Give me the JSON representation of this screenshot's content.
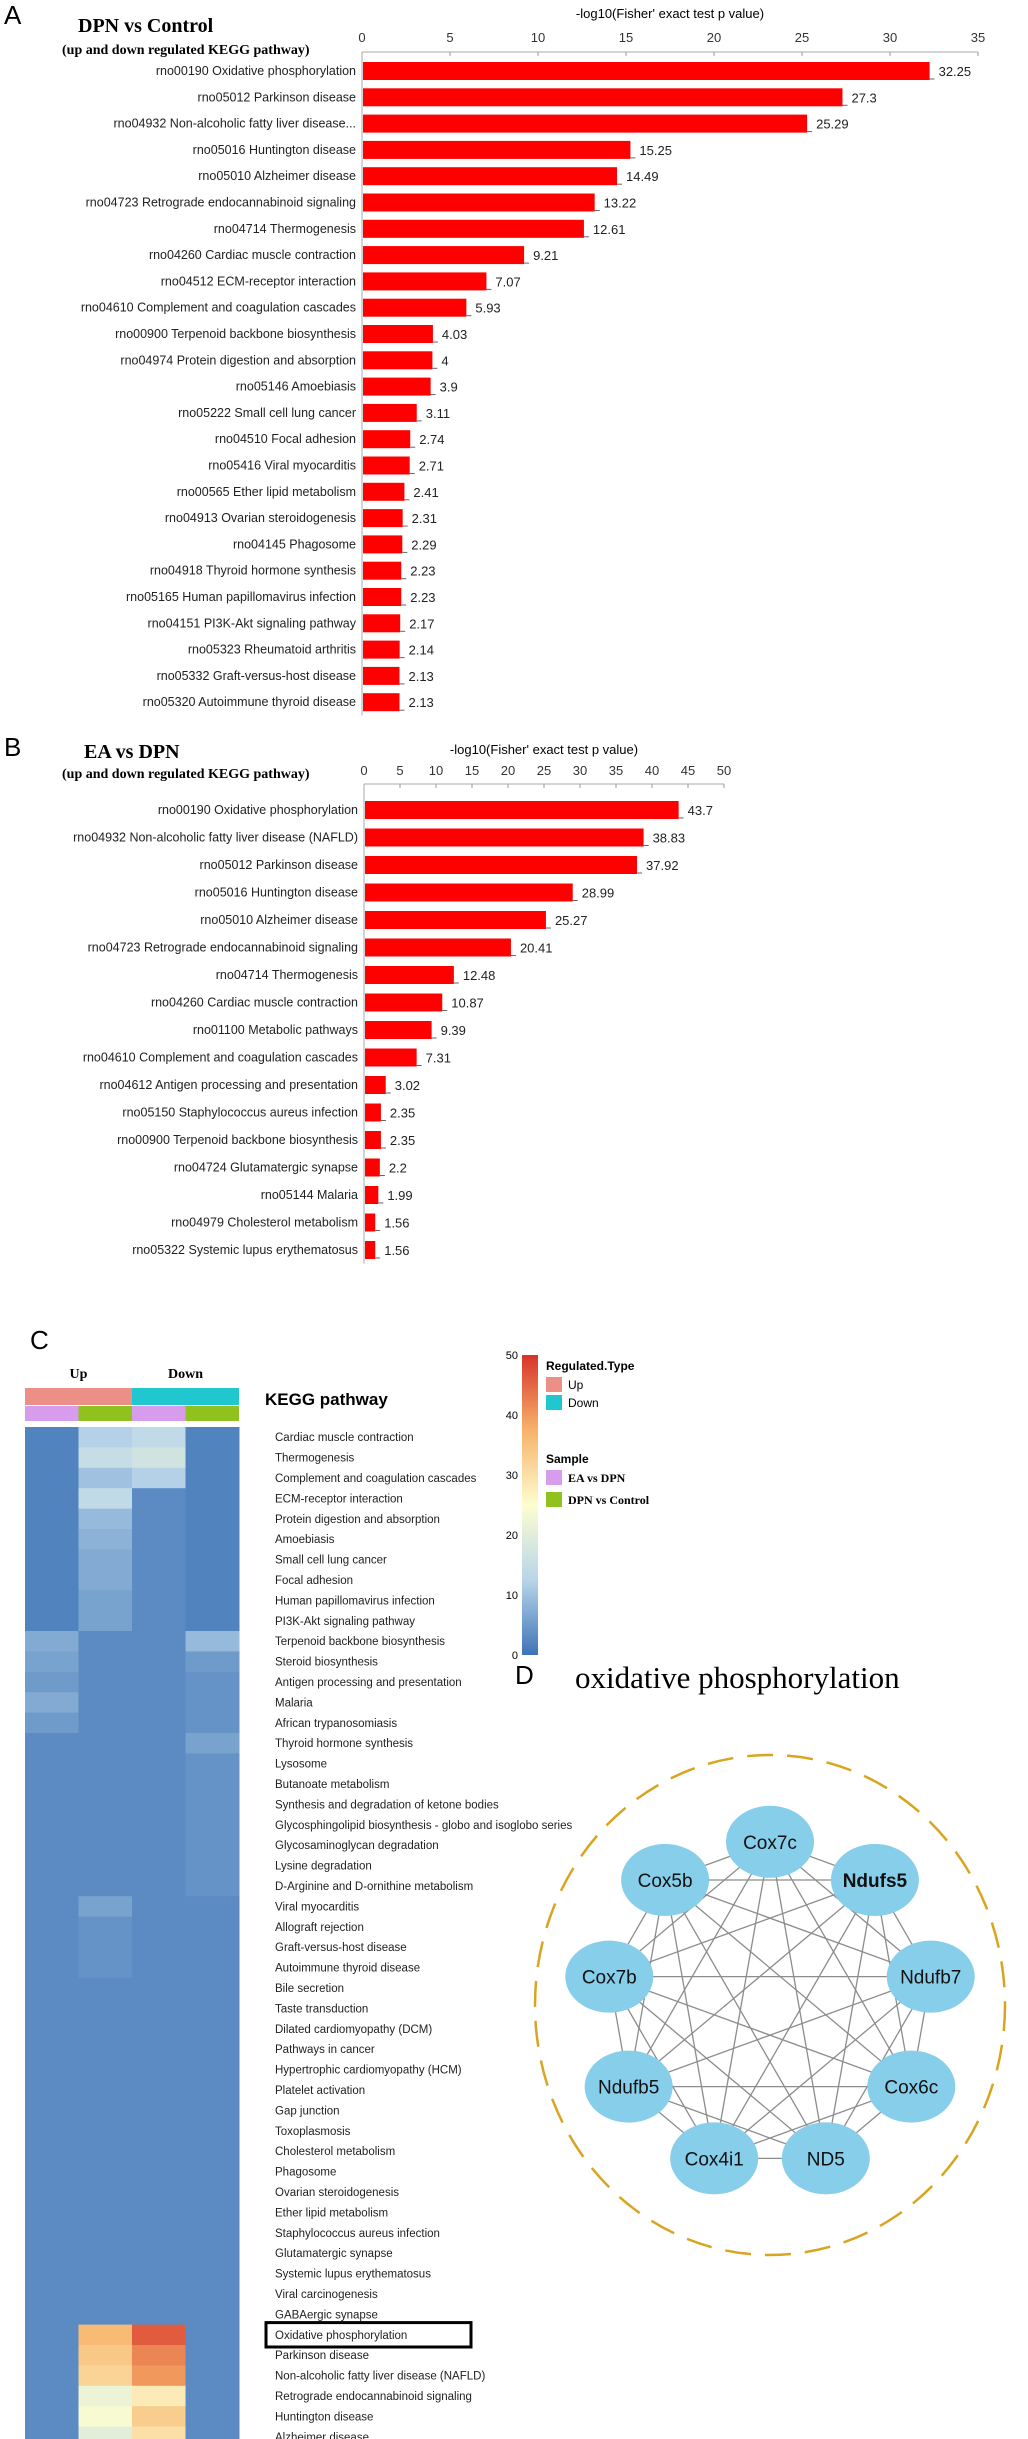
{
  "panels": {
    "A": "A",
    "B": "B",
    "C": "C",
    "D": "D"
  },
  "chart_data": [
    {
      "type": "bar",
      "orientation": "horizontal",
      "title": "DPN vs Control",
      "subtitle": "(up and down regulated KEGG pathway)",
      "xlabel": "-log10(Fisher' exact test p value)",
      "xlim": [
        0,
        35
      ],
      "xticks": [
        0,
        5,
        10,
        15,
        20,
        25,
        30,
        35
      ],
      "bar_color": "#ff0000",
      "categories": [
        "rno00190 Oxidative phosphorylation",
        "rno05012 Parkinson disease",
        "rno04932 Non-alcoholic fatty liver disease...",
        "rno05016 Huntington disease",
        "rno05010 Alzheimer disease",
        "rno04723 Retrograde endocannabinoid signaling",
        "rno04714 Thermogenesis",
        "rno04260 Cardiac muscle contraction",
        "rno04512 ECM-receptor interaction",
        "rno04610 Complement and coagulation cascades",
        "rno00900 Terpenoid backbone biosynthesis",
        "rno04974 Protein digestion and absorption",
        "rno05146 Amoebiasis",
        "rno05222 Small cell lung cancer",
        "rno04510 Focal adhesion",
        "rno05416 Viral myocarditis",
        "rno00565 Ether lipid metabolism",
        "rno04913 Ovarian steroidogenesis",
        "rno04145 Phagosome",
        "rno04918 Thyroid hormone synthesis",
        "rno05165 Human papillomavirus infection",
        "rno04151 PI3K-Akt signaling pathway",
        "rno05323 Rheumatoid arthritis",
        "rno05332 Graft-versus-host disease",
        "rno05320 Autoimmune thyroid disease"
      ],
      "values": [
        32.25,
        27.3,
        25.29,
        15.25,
        14.49,
        13.22,
        12.61,
        9.21,
        7.07,
        5.93,
        4.03,
        4,
        3.9,
        3.11,
        2.74,
        2.71,
        2.41,
        2.31,
        2.29,
        2.23,
        2.23,
        2.17,
        2.14,
        2.13,
        2.13
      ]
    },
    {
      "type": "bar",
      "orientation": "horizontal",
      "title": "EA vs DPN",
      "subtitle": "(up and down regulated KEGG pathway)",
      "xlabel": "-log10(Fisher' exact test p value)",
      "xlim": [
        0,
        50
      ],
      "xticks": [
        0,
        5,
        10,
        15,
        20,
        25,
        30,
        35,
        40,
        45,
        50
      ],
      "bar_color": "#ff0000",
      "categories": [
        "rno00190 Oxidative phosphorylation",
        "rno04932 Non-alcoholic fatty liver disease (NAFLD)",
        "rno05012 Parkinson disease",
        "rno05016 Huntington disease",
        "rno05010 Alzheimer disease",
        "rno04723 Retrograde endocannabinoid signaling",
        "rno04714 Thermogenesis",
        "rno04260 Cardiac muscle contraction",
        "rno01100 Metabolic pathways",
        "rno04610 Complement and coagulation cascades",
        "rno04612 Antigen processing and presentation",
        "rno05150 Staphylococcus aureus infection",
        "rno00900 Terpenoid backbone biosynthesis",
        "rno04724 Glutamatergic synapse",
        "rno05144 Malaria",
        "rno04979 Cholesterol metabolism",
        "rno05322 Systemic lupus erythematosus"
      ],
      "values": [
        43.7,
        38.83,
        37.92,
        28.99,
        25.27,
        20.41,
        12.48,
        10.87,
        9.39,
        7.31,
        3.02,
        2.35,
        2.35,
        2.2,
        1.99,
        1.56,
        1.56
      ]
    },
    {
      "type": "heatmap",
      "title": "KEGG pathway",
      "group_labels": [
        "Up",
        "Down"
      ],
      "column_regulation": [
        "Up",
        "Up",
        "Down",
        "Down"
      ],
      "column_sample": [
        "EA vs DPN",
        "DPN vs Control",
        "EA vs DPN",
        "DPN vs Control"
      ],
      "color_range": [
        0,
        50
      ],
      "colorbar_ticks": [
        0,
        10,
        20,
        30,
        40,
        50
      ],
      "colorscale": [
        "#3d74b6",
        "#b9d5ea",
        "#fdfdcf",
        "#f7b26a",
        "#d7342a"
      ],
      "legend": {
        "regulated_title": "Regulated.Type",
        "regulated_items": [
          {
            "label": "Up",
            "color": "#ec8f87"
          },
          {
            "label": "Down",
            "color": "#20c7cf"
          }
        ],
        "sample_title": "Sample",
        "sample_items": [
          {
            "label": "EA vs DPN",
            "color": "#d79cec"
          },
          {
            "label": "DPN vs Control",
            "color": "#8fc21f"
          }
        ]
      },
      "highlighted_row": "Oxidative phosphorylation",
      "rows": [
        "Cardiac muscle contraction",
        "Thermogenesis",
        "Complement and coagulation cascades",
        "ECM-receptor interaction",
        "Protein digestion and absorption",
        "Amoebiasis",
        "Small cell lung cancer",
        "Focal adhesion",
        "Human papillomavirus infection",
        "PI3K-Akt signaling pathway",
        "Terpenoid backbone biosynthesis",
        "Steroid biosynthesis",
        "Antigen processing and presentation",
        "Malaria",
        "African trypanosomiasis",
        "Thyroid hormone synthesis",
        "Lysosome",
        "Butanoate metabolism",
        "Synthesis and degradation of ketone bodies",
        "Glycosphingolipid biosynthesis - globo and isoglobo series",
        "Glycosaminoglycan degradation",
        "Lysine degradation",
        "D-Arginine and D-ornithine metabolism",
        "Viral myocarditis",
        "Allograft rejection",
        "Graft-versus-host disease",
        "Autoimmune thyroid disease",
        "Bile secretion",
        "Taste transduction",
        "Dilated cardiomyopathy (DCM)",
        "Pathways in cancer",
        "Hypertrophic cardiomyopathy (HCM)",
        "Platelet activation",
        "Gap junction",
        "Toxoplasmosis",
        "Cholesterol metabolism",
        "Phagosome",
        "Ovarian steroidogenesis",
        "Ether lipid metabolism",
        "Staphylococcus aureus infection",
        "Glutamatergic synapse",
        "Systemic lupus erythematosus",
        "Viral carcinogenesis",
        "GABAergic synapse",
        "Oxidative phosphorylation",
        "Parkinson disease",
        "Non-alcoholic fatty liver disease (NAFLD)",
        "Retrograde endocannabinoid signaling",
        "Huntington disease",
        "Alzheimer disease"
      ],
      "values": [
        [
          2,
          12,
          14,
          2
        ],
        [
          2,
          15,
          17,
          2
        ],
        [
          2,
          10,
          12,
          2
        ],
        [
          2,
          14,
          3,
          2
        ],
        [
          2,
          9,
          3,
          2
        ],
        [
          2,
          8,
          3,
          2
        ],
        [
          2,
          7,
          3,
          2
        ],
        [
          2,
          7,
          3,
          2
        ],
        [
          2,
          6,
          3,
          2
        ],
        [
          2,
          6,
          3,
          2
        ],
        [
          7,
          3,
          3,
          9
        ],
        [
          6,
          3,
          3,
          5
        ],
        [
          5,
          3,
          3,
          4
        ],
        [
          7,
          3,
          3,
          4
        ],
        [
          5,
          3,
          3,
          4
        ],
        [
          3,
          3,
          3,
          6
        ],
        [
          3,
          3,
          3,
          4
        ],
        [
          3,
          3,
          3,
          4
        ],
        [
          3,
          3,
          3,
          4
        ],
        [
          3,
          3,
          3,
          4
        ],
        [
          3,
          3,
          3,
          4
        ],
        [
          3,
          3,
          3,
          4
        ],
        [
          3,
          3,
          3,
          4
        ],
        [
          3,
          6,
          3,
          3
        ],
        [
          3,
          4,
          3,
          3
        ],
        [
          3,
          4,
          3,
          3
        ],
        [
          3,
          4,
          3,
          3
        ],
        [
          3,
          3,
          3,
          3
        ],
        [
          3,
          3,
          3,
          3
        ],
        [
          3,
          3,
          3,
          3
        ],
        [
          3,
          3,
          3,
          3
        ],
        [
          3,
          3,
          3,
          3
        ],
        [
          3,
          3,
          3,
          3
        ],
        [
          3,
          3,
          3,
          3
        ],
        [
          3,
          3,
          3,
          3
        ],
        [
          3,
          3,
          3,
          3
        ],
        [
          3,
          3,
          3,
          3
        ],
        [
          3,
          3,
          3,
          3
        ],
        [
          3,
          3,
          3,
          3
        ],
        [
          3,
          3,
          3,
          3
        ],
        [
          3,
          3,
          3,
          3
        ],
        [
          3,
          3,
          3,
          3
        ],
        [
          3,
          3,
          3,
          3
        ],
        [
          3,
          3,
          3,
          3
        ],
        [
          3,
          36,
          46,
          3
        ],
        [
          3,
          34,
          42,
          3
        ],
        [
          3,
          32,
          40,
          3
        ],
        [
          3,
          22,
          28,
          3
        ],
        [
          3,
          24,
          33,
          3
        ],
        [
          3,
          20,
          30,
          3
        ]
      ]
    },
    {
      "type": "network",
      "title": "oxidative phosphorylation",
      "node_color": "#87ceeb",
      "nodes": [
        "Cox7c",
        "Ndufs5",
        "Ndufb7",
        "Cox6c",
        "ND5",
        "Cox4i1",
        "Ndufb5",
        "Cox7b",
        "Cox5b"
      ],
      "bold_nodes": [
        "Ndufs5"
      ],
      "edges": [
        [
          0,
          1
        ],
        [
          0,
          2
        ],
        [
          0,
          3
        ],
        [
          0,
          4
        ],
        [
          0,
          5
        ],
        [
          0,
          6
        ],
        [
          0,
          7
        ],
        [
          0,
          8
        ],
        [
          1,
          2
        ],
        [
          1,
          3
        ],
        [
          1,
          4
        ],
        [
          1,
          5
        ],
        [
          1,
          6
        ],
        [
          1,
          7
        ],
        [
          1,
          8
        ],
        [
          2,
          3
        ],
        [
          2,
          4
        ],
        [
          2,
          5
        ],
        [
          2,
          6
        ],
        [
          2,
          7
        ],
        [
          2,
          8
        ],
        [
          3,
          4
        ],
        [
          3,
          5
        ],
        [
          3,
          6
        ],
        [
          3,
          7
        ],
        [
          3,
          8
        ],
        [
          4,
          5
        ],
        [
          4,
          6
        ],
        [
          4,
          7
        ],
        [
          4,
          8
        ],
        [
          5,
          6
        ],
        [
          5,
          7
        ],
        [
          5,
          8
        ],
        [
          6,
          7
        ],
        [
          6,
          8
        ],
        [
          7,
          8
        ]
      ]
    }
  ]
}
